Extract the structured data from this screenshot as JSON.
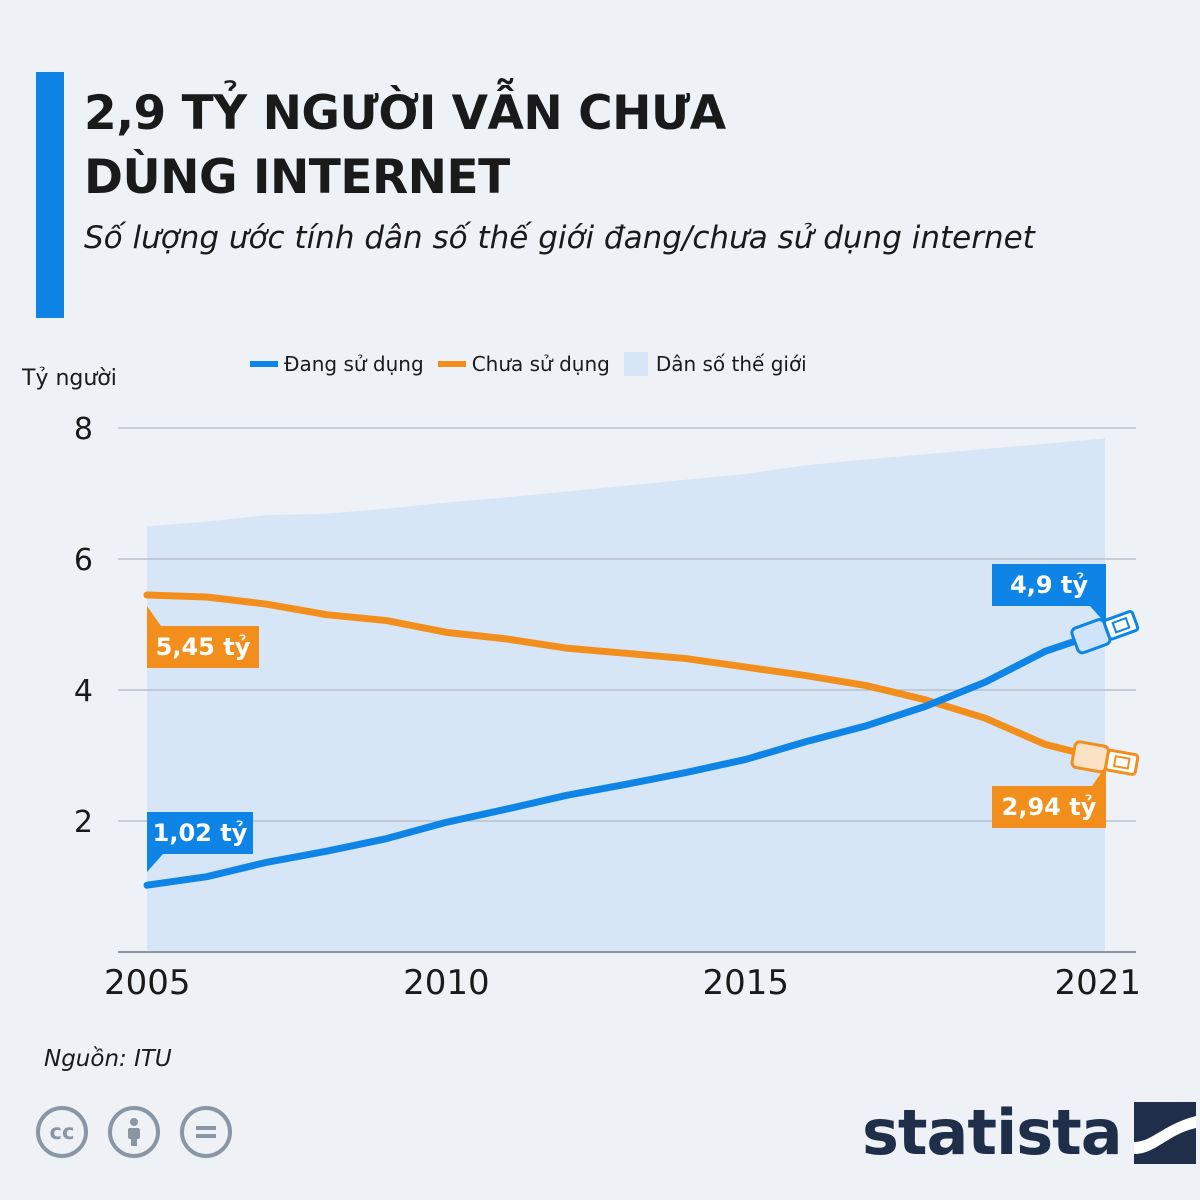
{
  "header": {
    "title_line1": "2,9 TỶ NGƯỜI VẪN CHƯA",
    "title_line2": "DÙNG INTERNET",
    "subtitle": "Số lượng ước tính dân số thế giới đang/chưa sử dụng internet"
  },
  "legend": {
    "items": [
      {
        "label": "Đang sử dụng",
        "color": "#0e85e6",
        "kind": "line"
      },
      {
        "label": "Chưa sử dụng",
        "color": "#f28e1c",
        "kind": "line"
      },
      {
        "label": "Dân số thế giới",
        "color": "#d6e6f6",
        "kind": "area"
      }
    ],
    "position": "top"
  },
  "footer": {
    "source": "Nguồn: ITU",
    "license_icons": [
      "cc-icon",
      "attribution-icon",
      "noderivs-icon"
    ],
    "brand": "statista"
  },
  "chart_data": {
    "type": "line",
    "title": "2,9 TỶ NGƯỜI VẪN CHƯA DÙNG INTERNET",
    "ylabel": "Tỷ người",
    "xlabel": "",
    "ylim": [
      0,
      8
    ],
    "xlim": [
      2005,
      2021
    ],
    "y_ticks": [
      2,
      4,
      6,
      8
    ],
    "x_ticks": [
      2005,
      2010,
      2015,
      2021
    ],
    "grid": true,
    "x": [
      2005,
      2006,
      2007,
      2008,
      2009,
      2010,
      2011,
      2012,
      2013,
      2014,
      2015,
      2016,
      2017,
      2018,
      2019,
      2020,
      2021
    ],
    "series": [
      {
        "name": "Dân số thế giới",
        "kind": "area",
        "color": "#d6e6f6",
        "values": [
          6.5,
          6.57,
          6.67,
          6.69,
          6.77,
          6.86,
          6.94,
          7.03,
          7.12,
          7.21,
          7.3,
          7.43,
          7.52,
          7.6,
          7.68,
          7.76,
          7.84
        ]
      },
      {
        "name": "Chưa sử dụng",
        "kind": "line",
        "color": "#f28e1c",
        "values": [
          5.45,
          5.42,
          5.31,
          5.15,
          5.06,
          4.88,
          4.78,
          4.64,
          4.56,
          4.48,
          4.35,
          4.22,
          4.07,
          3.85,
          3.57,
          3.17,
          2.94
        ]
      },
      {
        "name": "Đang sử dụng",
        "kind": "line",
        "color": "#0e85e6",
        "values": [
          1.02,
          1.15,
          1.37,
          1.54,
          1.73,
          1.98,
          2.18,
          2.39,
          2.56,
          2.74,
          2.94,
          3.21,
          3.45,
          3.75,
          4.12,
          4.59,
          4.9
        ]
      }
    ],
    "annotations": [
      {
        "text": "5,45 tỷ",
        "series": "Chưa sử dụng",
        "x": 2005,
        "y": 5.45,
        "color": "#f28e1c"
      },
      {
        "text": "1,02 tỷ",
        "series": "Đang sử dụng",
        "x": 2005,
        "y": 1.02,
        "color": "#0e85e6"
      },
      {
        "text": "4,9 tỷ",
        "series": "Đang sử dụng",
        "x": 2021,
        "y": 4.9,
        "color": "#0e85e6"
      },
      {
        "text": "2,94 tỷ",
        "series": "Chưa sử dụng",
        "x": 2021,
        "y": 2.94,
        "color": "#f28e1c"
      }
    ]
  }
}
